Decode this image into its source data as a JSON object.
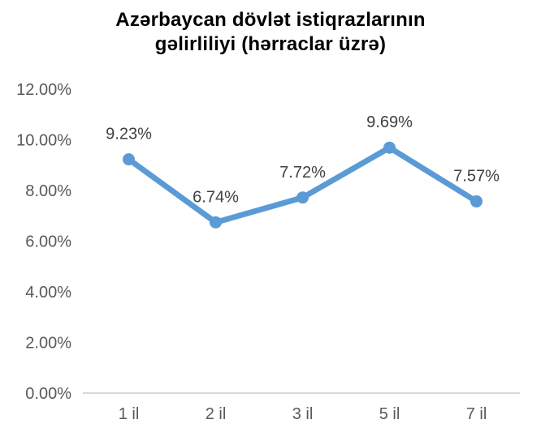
{
  "title_lines": [
    "Azərbaycan dövlət istiqrazlarının",
    "gəlirliliyi (hərraclar üzrə)"
  ],
  "chart_data": {
    "type": "line",
    "title": "Azərbaycan dövlət istiqrazlarının gəlirliliyi (hərraclar üzrə)",
    "categories": [
      "1 il",
      "2 il",
      "3 il",
      "5 il",
      "7 il"
    ],
    "values": [
      9.23,
      6.74,
      7.72,
      9.69,
      7.57
    ],
    "data_labels": [
      "9.23%",
      "6.74%",
      "7.72%",
      "9.69%",
      "7.57%"
    ],
    "y_ticks": [
      "0.00%",
      "2.00%",
      "4.00%",
      "6.00%",
      "8.00%",
      "10.00%",
      "12.00%"
    ],
    "ylim": [
      0,
      12
    ],
    "xlabel": "",
    "ylabel": "",
    "grid": false,
    "legend": false,
    "data_label_position": "above",
    "marker": "circle",
    "colors": {
      "series": "#5B9BD5",
      "axis_line": "#D9D9D9",
      "axis_text": "#595959",
      "data_label_text": "#404040",
      "title_text": "#000000",
      "background": "#FFFFFF"
    }
  }
}
